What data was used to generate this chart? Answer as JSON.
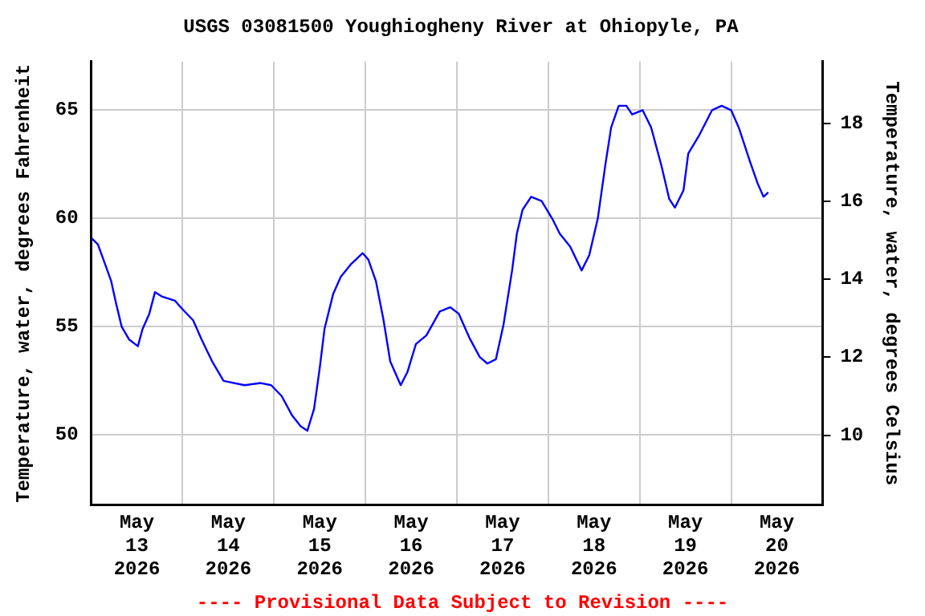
{
  "chart_data": {
    "type": "line",
    "title": "USGS 03081500 Youghiogheny River at Ohiopyle, PA",
    "ylabel": "Temperature, water, degrees Fahrenheit",
    "y2label": "Temperature, water, degrees Celsius",
    "annotations": [
      "---- Provisional Data Subject to Revision ----"
    ],
    "x": [
      "2026-05-13T00:00",
      "2026-05-13T01:45",
      "2026-05-13T03:00",
      "2026-05-13T05:15",
      "2026-05-13T06:30",
      "2026-05-13T08:00",
      "2026-05-13T10:00",
      "2026-05-13T12:15",
      "2026-05-13T13:30",
      "2026-05-13T15:15",
      "2026-05-13T16:45",
      "2026-05-13T18:30",
      "2026-05-13T22:00",
      "2026-05-14T00:00",
      "2026-05-14T02:45",
      "2026-05-14T05:00",
      "2026-05-14T07:45",
      "2026-05-14T10:45",
      "2026-05-14T16:15",
      "2026-05-14T20:30",
      "2026-05-14T23:15",
      "2026-05-15T02:00",
      "2026-05-15T04:45",
      "2026-05-15T07:00",
      "2026-05-15T08:45",
      "2026-05-15T10:30",
      "2026-05-15T12:00",
      "2026-05-15T13:15",
      "2026-05-15T15:30",
      "2026-05-15T17:30",
      "2026-05-15T20:15",
      "2026-05-15T23:15",
      "2026-05-16T00:45",
      "2026-05-16T02:45",
      "2026-05-16T04:45",
      "2026-05-16T06:30",
      "2026-05-16T09:15",
      "2026-05-16T11:00",
      "2026-05-16T13:15",
      "2026-05-16T16:00",
      "2026-05-16T19:30",
      "2026-05-16T22:15",
      "2026-05-17T00:30",
      "2026-05-17T03:15",
      "2026-05-17T06:00",
      "2026-05-17T08:00",
      "2026-05-17T10:15",
      "2026-05-17T12:15",
      "2026-05-17T14:30",
      "2026-05-17T15:45",
      "2026-05-17T17:15",
      "2026-05-17T19:30",
      "2026-05-17T22:15",
      "2026-05-18T01:00",
      "2026-05-18T03:00",
      "2026-05-18T05:45",
      "2026-05-18T08:45",
      "2026-05-18T10:45",
      "2026-05-18T13:00",
      "2026-05-18T15:00",
      "2026-05-18T16:30",
      "2026-05-18T18:30",
      "2026-05-18T20:30",
      "2026-05-18T22:00",
      "2026-05-19T00:45",
      "2026-05-19T03:00",
      "2026-05-19T05:45",
      "2026-05-19T07:45",
      "2026-05-19T09:15",
      "2026-05-19T11:30",
      "2026-05-19T12:45",
      "2026-05-19T15:30",
      "2026-05-19T19:00",
      "2026-05-19T21:30",
      "2026-05-20T00:00",
      "2026-05-20T02:00",
      "2026-05-20T05:00",
      "2026-05-20T07:00",
      "2026-05-20T08:30",
      "2026-05-20T09:45"
    ],
    "series": [
      {
        "color": "#0000ff",
        "values": [
          59.1,
          58.8,
          58.2,
          57.1,
          56.1,
          55.0,
          54.4,
          54.1,
          54.9,
          55.6,
          56.6,
          56.4,
          56.2,
          55.8,
          55.3,
          54.4,
          53.4,
          52.5,
          52.3,
          52.4,
          52.3,
          51.8,
          50.9,
          50.4,
          50.2,
          51.2,
          53.1,
          54.9,
          56.5,
          57.3,
          57.9,
          58.4,
          58.1,
          57.1,
          55.3,
          53.4,
          52.3,
          52.9,
          54.2,
          54.6,
          55.7,
          55.9,
          55.6,
          54.5,
          53.6,
          53.3,
          53.5,
          55.1,
          57.6,
          59.3,
          60.4,
          61.0,
          60.8,
          60.0,
          59.3,
          58.7,
          57.6,
          58.3,
          60.0,
          62.5,
          64.2,
          65.2,
          65.2,
          64.8,
          65.0,
          64.2,
          62.4,
          60.9,
          60.5,
          61.3,
          63.0,
          63.8,
          65.0,
          65.2,
          65.0,
          64.2,
          62.6,
          61.6,
          61.0,
          61.2
        ]
      }
    ],
    "xlim": [
      "2026-05-13T00:00",
      "2026-05-21T00:00"
    ],
    "xticks": [
      {
        "value": "2026-05-13T12:00",
        "label": "May\n13\n2026"
      },
      {
        "value": "2026-05-14T00:00",
        "label": null
      },
      {
        "value": "2026-05-14T12:00",
        "label": "May\n14\n2026"
      },
      {
        "value": "2026-05-15T00:00",
        "label": null
      },
      {
        "value": "2026-05-15T12:00",
        "label": "May\n15\n2026"
      },
      {
        "value": "2026-05-16T00:00",
        "label": null
      },
      {
        "value": "2026-05-16T12:00",
        "label": "May\n16\n2026"
      },
      {
        "value": "2026-05-17T00:00",
        "label": null
      },
      {
        "value": "2026-05-17T12:00",
        "label": "May\n17\n2026"
      },
      {
        "value": "2026-05-18T00:00",
        "label": null
      },
      {
        "value": "2026-05-18T12:00",
        "label": "May\n18\n2026"
      },
      {
        "value": "2026-05-19T00:00",
        "label": null
      },
      {
        "value": "2026-05-19T12:00",
        "label": "May\n19\n2026"
      },
      {
        "value": "2026-05-20T00:00",
        "label": null
      },
      {
        "value": "2026-05-20T12:00",
        "label": "May\n20\n2026"
      }
    ],
    "ylim": [
      46.77,
      67.24
    ],
    "yticks": [
      50,
      55,
      60,
      65
    ],
    "y2lim": [
      8.21,
      19.58
    ],
    "y2ticks": [
      10,
      12,
      14,
      16,
      18
    ],
    "grid": true,
    "marker": "none",
    "line_style": "solid"
  }
}
